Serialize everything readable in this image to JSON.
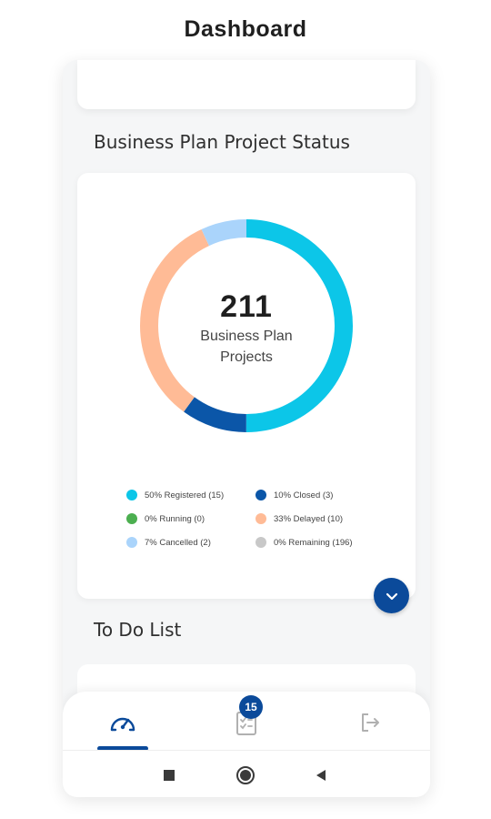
{
  "header": {
    "title": "Dashboard"
  },
  "sections": {
    "status_title": "Business Plan Project Status",
    "todo_title": "To Do List"
  },
  "donut": {
    "count": "211",
    "label_line1": "Business Plan",
    "label_line2": "Projects"
  },
  "legend": [
    {
      "label": "50% Registered (15)",
      "color": "#0cc6e8"
    },
    {
      "label": "10% Closed (3)",
      "color": "#0b56a8"
    },
    {
      "label": "0% Running (0)",
      "color": "#4caf50"
    },
    {
      "label": "33% Delayed (10)",
      "color": "#ffbb96"
    },
    {
      "label": "7% Cancelled (2)",
      "color": "#aad4fb"
    },
    {
      "label": "0% Remaining (196)",
      "color": "#c8c8c8"
    }
  ],
  "nav": {
    "tasks_badge": "15",
    "items": [
      {
        "icon": "speedometer-icon"
      },
      {
        "icon": "checklist-icon"
      },
      {
        "icon": "logout-icon"
      }
    ]
  },
  "colors": {
    "accent": "#0b4a9a"
  }
}
